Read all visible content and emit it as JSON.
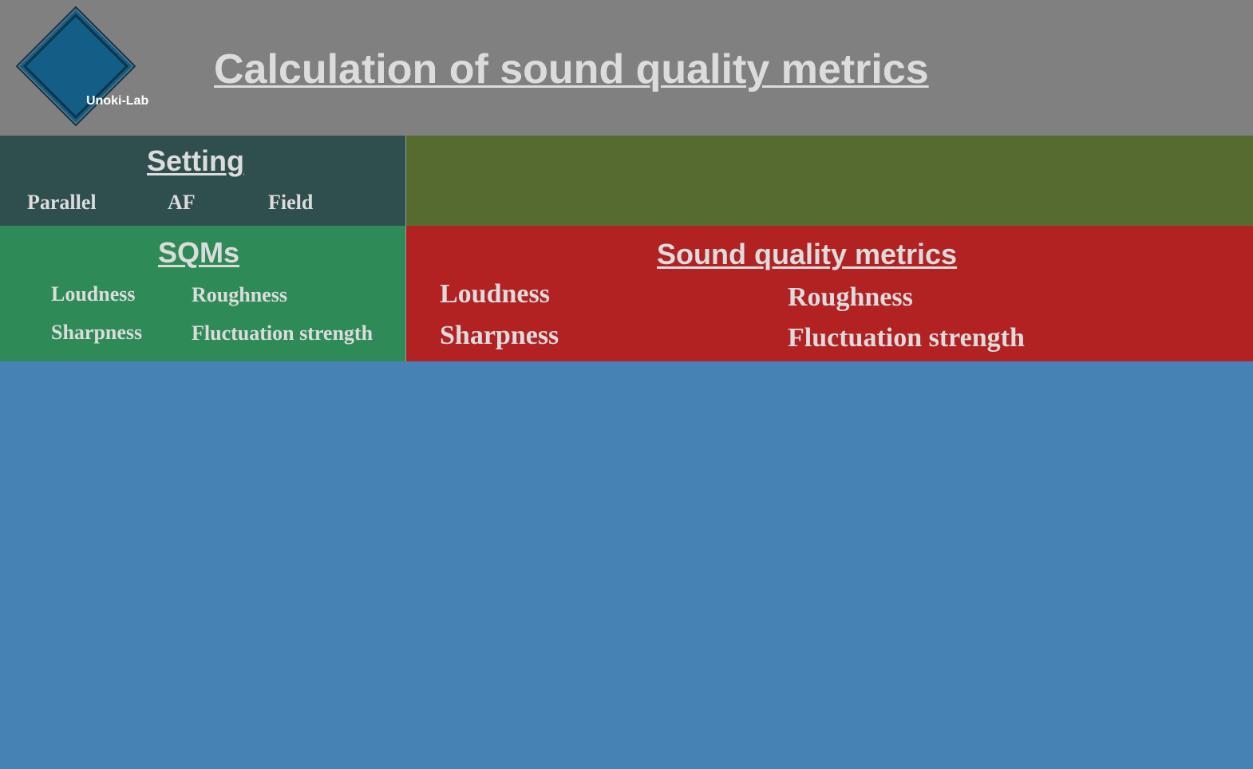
{
  "header": {
    "logo_text": "Unoki-Lab",
    "title": "Calculation of sound quality metrics"
  },
  "setting": {
    "title": "Setting",
    "items": [
      "Parallel",
      "AF",
      "Field"
    ]
  },
  "sqms": {
    "title": "SQMs",
    "items": [
      "Loudness",
      "Roughness",
      "Sharpness",
      "Fluctuation strength"
    ]
  },
  "results": {
    "title": "Sound quality metrics",
    "items": [
      "Loudness",
      "Roughness",
      "Sharpness",
      "Fluctuation strength"
    ]
  },
  "colors": {
    "header_bg": "#808080",
    "setting_bg": "#2f4f4f",
    "olive_bg": "#556b2f",
    "sqms_bg": "#2e8b57",
    "metrics_bg": "#b22222",
    "canvas_bg": "#4682b4",
    "logo_fill": "#135e86",
    "text_color": "#dcdcdc"
  },
  "icons": {
    "logo": "diamond-logo-icon"
  }
}
